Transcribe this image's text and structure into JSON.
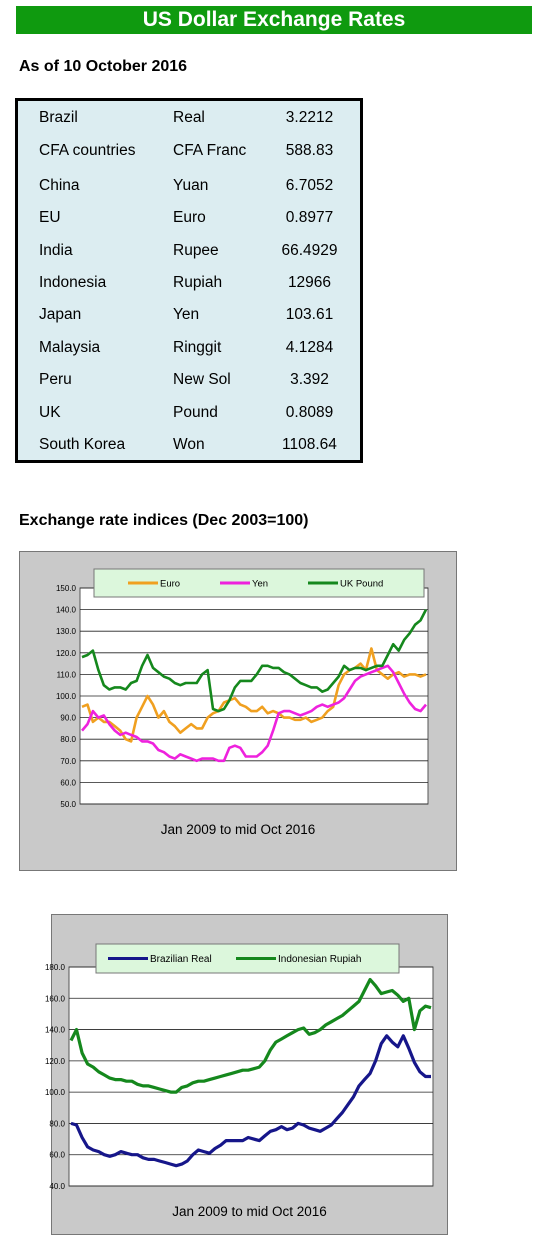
{
  "page": {
    "title": "US Dollar Exchange Rates",
    "as_of": "As of 10 October 2016",
    "indices_heading": "Exchange rate indices (Dec 2003=100)"
  },
  "rates": [
    {
      "country": "Brazil",
      "currency": "Real",
      "rate": "3.2212"
    },
    {
      "country": "CFA countries",
      "currency": "CFA Franc",
      "rate": "588.83"
    },
    {
      "country": "China",
      "currency": "Yuan",
      "rate": "6.7052"
    },
    {
      "country": "EU",
      "currency": "Euro",
      "rate": "0.8977"
    },
    {
      "country": "India",
      "currency": "Rupee",
      "rate": "66.4929"
    },
    {
      "country": "Indonesia",
      "currency": "Rupiah",
      "rate": "12966"
    },
    {
      "country": "Japan",
      "currency": "Yen",
      "rate": "103.61"
    },
    {
      "country": "Malaysia",
      "currency": "Ringgit",
      "rate": "4.1284"
    },
    {
      "country": "Peru",
      "currency": "New Sol",
      "rate": "3.392"
    },
    {
      "country": "UK",
      "currency": "Pound",
      "rate": "0.8089"
    },
    {
      "country": "South Korea",
      "currency": "Won",
      "rate": "1108.64"
    }
  ],
  "colors": {
    "title_bg": "#0f9a0f",
    "table_bg": "#dcedf1",
    "panel_bg": "#c9c9c9",
    "legend_bg": "#dcf7dc",
    "euro": "#f0a020",
    "yen": "#ee22dd",
    "uk_pound": "#15881d",
    "brazilian_real": "#16168a",
    "indonesian_rupiah": "#15881d"
  },
  "chart_data": [
    {
      "type": "line",
      "caption": "Jan 2009 to mid Oct 2016",
      "x_range": [
        "Jan 2009",
        "mid Oct 2016"
      ],
      "ylim": [
        50,
        150
      ],
      "y_ticks": [
        "150.0",
        "140.0",
        "130.0",
        "120.0",
        "110.0",
        "100.0",
        "90.0",
        "80.0",
        "70.0",
        "60.0",
        "50.0"
      ],
      "grid": true,
      "legend_position": "top",
      "series": [
        {
          "name": "Euro",
          "values": [
            95,
            96,
            88,
            90,
            88,
            88,
            86,
            84,
            80,
            79,
            90,
            95,
            100,
            96,
            90,
            93,
            88,
            86,
            83,
            85,
            87,
            85,
            85,
            90,
            92,
            93,
            97,
            98,
            99,
            96,
            95,
            93,
            93,
            95,
            92,
            93,
            92,
            90,
            90,
            89,
            89,
            90,
            88,
            89,
            90,
            93,
            95,
            105,
            110,
            112,
            113,
            115,
            112,
            122,
            112,
            110,
            108,
            110,
            111,
            109,
            110,
            110,
            109,
            110
          ]
        },
        {
          "name": "Yen",
          "values": [
            84,
            87,
            93,
            90,
            91,
            87,
            84,
            82,
            83,
            82,
            81,
            79,
            79,
            78,
            75,
            74,
            72,
            71,
            73,
            72,
            71,
            70,
            71,
            71,
            71,
            70,
            70,
            76,
            77,
            76,
            72,
            72,
            72,
            74,
            77,
            84,
            92,
            93,
            93,
            92,
            91,
            92,
            93,
            95,
            96,
            95,
            96,
            97,
            99,
            103,
            107,
            109,
            110,
            111,
            112,
            113,
            114,
            111,
            106,
            101,
            97,
            94,
            93,
            96
          ]
        },
        {
          "name": "UK Pound",
          "values": [
            118,
            119,
            121,
            112,
            105,
            103,
            104,
            104,
            103,
            106,
            107,
            114,
            119,
            113,
            111,
            109,
            108,
            106,
            105,
            106,
            106,
            106,
            110,
            112,
            94,
            93,
            94,
            98,
            104,
            107,
            107,
            107,
            110,
            114,
            114,
            113,
            113,
            111,
            110,
            108,
            106,
            105,
            104,
            104,
            102,
            103,
            106,
            109,
            114,
            112,
            113,
            113,
            112,
            113,
            114,
            114,
            119,
            124,
            121,
            126,
            129,
            133,
            135,
            140
          ]
        }
      ]
    },
    {
      "type": "line",
      "caption": "Jan 2009 to mid Oct 2016",
      "x_range": [
        "Jan 2009",
        "mid Oct 2016"
      ],
      "ylim": [
        40,
        180
      ],
      "y_ticks": [
        "180.0",
        "160.0",
        "140.0",
        "120.0",
        "100.0",
        "80.0",
        "60.0",
        "40.0"
      ],
      "grid": true,
      "legend_position": "top",
      "series": [
        {
          "name": "Brazilian Real",
          "values": [
            80,
            79,
            71,
            65,
            63,
            62,
            60,
            59,
            60,
            62,
            61,
            60,
            60,
            58,
            57,
            57,
            56,
            55,
            54,
            53,
            54,
            56,
            60,
            63,
            62,
            61,
            64,
            66,
            69,
            69,
            69,
            69,
            71,
            70,
            69,
            72,
            75,
            76,
            78,
            76,
            77,
            80,
            79,
            77,
            76,
            75,
            77,
            79,
            83,
            87,
            92,
            97,
            104,
            108,
            112,
            120,
            131,
            136,
            132,
            129,
            136,
            128,
            119,
            113,
            110,
            110
          ]
        },
        {
          "name": "Indonesian Rupiah",
          "values": [
            133,
            140,
            125,
            118,
            116,
            113,
            111,
            109,
            108,
            108,
            107,
            107,
            105,
            104,
            104,
            103,
            102,
            101,
            100,
            100,
            103,
            104,
            106,
            107,
            107,
            108,
            109,
            110,
            111,
            112,
            113,
            114,
            114,
            115,
            116,
            120,
            127,
            132,
            134,
            136,
            138,
            140,
            141,
            137,
            138,
            140,
            143,
            145,
            147,
            149,
            152,
            155,
            158,
            165,
            172,
            168,
            163,
            164,
            165,
            162,
            158,
            160,
            140,
            152,
            155,
            154
          ]
        }
      ]
    }
  ]
}
